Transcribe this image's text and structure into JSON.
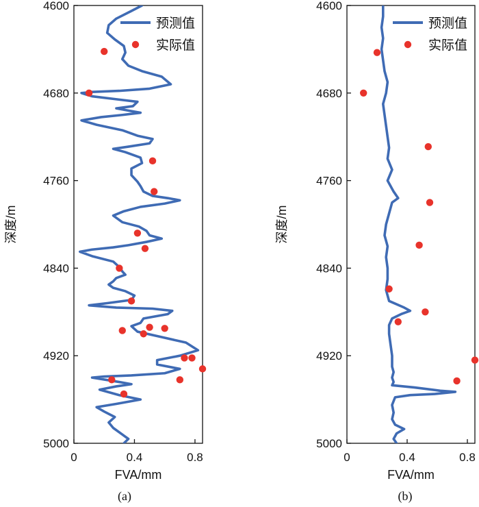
{
  "legend": {
    "predicted_label": "预测值",
    "actual_label": "实际值"
  },
  "colors": {
    "predicted": "#3f6bb4",
    "actual": "#e8332b",
    "axis": "#111111"
  },
  "chart_data": [
    {
      "type": "line",
      "caption": "(a)",
      "xlabel": "FVA/mm",
      "ylabel": "深度/m",
      "xlim": [
        0,
        0.85
      ],
      "ylim": [
        4600,
        5000
      ],
      "y_inverted": true,
      "xticks": [
        0,
        0.4,
        0.8
      ],
      "xtick_labels": [
        "0",
        "0.4",
        "0.8"
      ],
      "yticks": [
        4600,
        4680,
        4760,
        4840,
        4920,
        5000
      ],
      "ytick_labels": [
        "4600",
        "4680",
        "4760",
        "4840",
        "4920",
        "5000"
      ],
      "legend_position": "top-right",
      "series": [
        {
          "name": "预测值",
          "kind": "line",
          "points": [
            [
              0.45,
              4600
            ],
            [
              0.38,
              4605
            ],
            [
              0.28,
              4612
            ],
            [
              0.23,
              4618
            ],
            [
              0.22,
              4625
            ],
            [
              0.27,
              4631
            ],
            [
              0.33,
              4637
            ],
            [
              0.34,
              4643
            ],
            [
              0.32,
              4649
            ],
            [
              0.36,
              4655
            ],
            [
              0.45,
              4660
            ],
            [
              0.58,
              4665
            ],
            [
              0.64,
              4672
            ],
            [
              0.5,
              4676
            ],
            [
              0.3,
              4678
            ],
            [
              0.12,
              4679
            ],
            [
              0.05,
              4680
            ],
            [
              0.12,
              4683
            ],
            [
              0.3,
              4686
            ],
            [
              0.42,
              4688
            ],
            [
              0.39,
              4692
            ],
            [
              0.28,
              4694
            ],
            [
              0.36,
              4696
            ],
            [
              0.44,
              4698
            ],
            [
              0.32,
              4700
            ],
            [
              0.18,
              4702
            ],
            [
              0.05,
              4705
            ],
            [
              0.15,
              4709
            ],
            [
              0.32,
              4714
            ],
            [
              0.42,
              4719
            ],
            [
              0.52,
              4722
            ],
            [
              0.5,
              4726
            ],
            [
              0.36,
              4729
            ],
            [
              0.26,
              4731
            ],
            [
              0.34,
              4734
            ],
            [
              0.44,
              4739
            ],
            [
              0.45,
              4744
            ],
            [
              0.38,
              4749
            ],
            [
              0.38,
              4755
            ],
            [
              0.42,
              4761
            ],
            [
              0.44,
              4765
            ],
            [
              0.46,
              4770
            ],
            [
              0.52,
              4774
            ],
            [
              0.62,
              4776
            ],
            [
              0.7,
              4778
            ],
            [
              0.6,
              4781
            ],
            [
              0.44,
              4784
            ],
            [
              0.33,
              4788
            ],
            [
              0.26,
              4792
            ],
            [
              0.32,
              4798
            ],
            [
              0.43,
              4802
            ],
            [
              0.48,
              4806
            ],
            [
              0.5,
              4810
            ],
            [
              0.58,
              4813
            ],
            [
              0.48,
              4816
            ],
            [
              0.36,
              4819
            ],
            [
              0.26,
              4821
            ],
            [
              0.12,
              4823
            ],
            [
              0.04,
              4825
            ],
            [
              0.12,
              4829
            ],
            [
              0.26,
              4834
            ],
            [
              0.3,
              4839
            ],
            [
              0.32,
              4843
            ],
            [
              0.34,
              4846
            ],
            [
              0.28,
              4849
            ],
            [
              0.26,
              4852
            ],
            [
              0.23,
              4855
            ],
            [
              0.26,
              4858
            ],
            [
              0.34,
              4861
            ],
            [
              0.4,
              4865
            ],
            [
              0.38,
              4869
            ],
            [
              0.22,
              4872
            ],
            [
              0.1,
              4874
            ],
            [
              0.28,
              4876
            ],
            [
              0.52,
              4877
            ],
            [
              0.65,
              4879
            ],
            [
              0.62,
              4882
            ],
            [
              0.46,
              4886
            ],
            [
              0.44,
              4890
            ],
            [
              0.38,
              4893
            ],
            [
              0.42,
              4898
            ],
            [
              0.58,
              4903
            ],
            [
              0.74,
              4908
            ],
            [
              0.82,
              4915
            ],
            [
              0.7,
              4920
            ],
            [
              0.55,
              4924
            ],
            [
              0.55,
              4928
            ],
            [
              0.7,
              4932
            ],
            [
              0.6,
              4936
            ],
            [
              0.38,
              4938
            ],
            [
              0.2,
              4939
            ],
            [
              0.12,
              4940
            ],
            [
              0.3,
              4944
            ],
            [
              0.38,
              4946
            ],
            [
              0.28,
              4948
            ],
            [
              0.17,
              4951
            ],
            [
              0.3,
              4956
            ],
            [
              0.44,
              4960
            ],
            [
              0.28,
              4964
            ],
            [
              0.15,
              4967
            ],
            [
              0.2,
              4971
            ],
            [
              0.27,
              4976
            ],
            [
              0.23,
              4981
            ],
            [
              0.26,
              4986
            ],
            [
              0.32,
              4992
            ],
            [
              0.36,
              4996
            ],
            [
              0.33,
              5000
            ]
          ]
        },
        {
          "name": "实际值",
          "kind": "scatter",
          "points": [
            [
              0.2,
              4642
            ],
            [
              0.1,
              4680
            ],
            [
              0.52,
              4742
            ],
            [
              0.53,
              4770
            ],
            [
              0.47,
              4822
            ],
            [
              0.42,
              4808
            ],
            [
              0.3,
              4840
            ],
            [
              0.38,
              4870
            ],
            [
              0.32,
              4897
            ],
            [
              0.5,
              4894
            ],
            [
              0.73,
              4922
            ],
            [
              0.85,
              4932
            ],
            [
              0.7,
              4942
            ],
            [
              0.25,
              4942
            ],
            [
              0.33,
              4955
            ],
            [
              0.46,
              4900
            ],
            [
              0.6,
              4895
            ],
            [
              0.78,
              4922
            ]
          ]
        }
      ]
    },
    {
      "type": "line",
      "caption": "(b)",
      "xlabel": "FVA/mm",
      "ylabel": "深度/m",
      "xlim": [
        0,
        0.85
      ],
      "ylim": [
        4600,
        5000
      ],
      "y_inverted": true,
      "xticks": [
        0,
        0.4,
        0.8
      ],
      "xtick_labels": [
        "0",
        "0.4",
        "0.8"
      ],
      "yticks": [
        4600,
        4680,
        4760,
        4840,
        4920,
        5000
      ],
      "ytick_labels": [
        "4600",
        "4680",
        "4760",
        "4840",
        "4920",
        "5000"
      ],
      "legend_position": "top-right",
      "series": [
        {
          "name": "预测值",
          "kind": "line",
          "points": [
            [
              0.24,
              4600
            ],
            [
              0.24,
              4610
            ],
            [
              0.23,
              4620
            ],
            [
              0.24,
              4630
            ],
            [
              0.23,
              4640
            ],
            [
              0.24,
              4650
            ],
            [
              0.25,
              4660
            ],
            [
              0.27,
              4670
            ],
            [
              0.26,
              4680
            ],
            [
              0.24,
              4690
            ],
            [
              0.25,
              4700
            ],
            [
              0.26,
              4710
            ],
            [
              0.27,
              4720
            ],
            [
              0.28,
              4730
            ],
            [
              0.27,
              4740
            ],
            [
              0.3,
              4750
            ],
            [
              0.27,
              4760
            ],
            [
              0.29,
              4765
            ],
            [
              0.31,
              4770
            ],
            [
              0.34,
              4776
            ],
            [
              0.3,
              4780
            ],
            [
              0.28,
              4790
            ],
            [
              0.26,
              4800
            ],
            [
              0.25,
              4810
            ],
            [
              0.27,
              4820
            ],
            [
              0.26,
              4830
            ],
            [
              0.27,
              4840
            ],
            [
              0.27,
              4850
            ],
            [
              0.26,
              4860
            ],
            [
              0.28,
              4870
            ],
            [
              0.38,
              4876
            ],
            [
              0.42,
              4879
            ],
            [
              0.36,
              4882
            ],
            [
              0.3,
              4886
            ],
            [
              0.28,
              4892
            ],
            [
              0.28,
              4900
            ],
            [
              0.29,
              4910
            ],
            [
              0.3,
              4920
            ],
            [
              0.3,
              4930
            ],
            [
              0.31,
              4935
            ],
            [
              0.3,
              4940
            ],
            [
              0.31,
              4944
            ],
            [
              0.3,
              4947
            ],
            [
              0.45,
              4949
            ],
            [
              0.62,
              4952
            ],
            [
              0.72,
              4953
            ],
            [
              0.58,
              4955
            ],
            [
              0.42,
              4956
            ],
            [
              0.32,
              4958
            ],
            [
              0.3,
              4965
            ],
            [
              0.31,
              4972
            ],
            [
              0.3,
              4978
            ],
            [
              0.32,
              4983
            ],
            [
              0.38,
              4987
            ],
            [
              0.33,
              4991
            ],
            [
              0.31,
              4996
            ],
            [
              0.33,
              5000
            ]
          ]
        },
        {
          "name": "实际值",
          "kind": "scatter",
          "points": [
            [
              0.2,
              4643
            ],
            [
              0.11,
              4680
            ],
            [
              0.54,
              4729
            ],
            [
              0.55,
              4780
            ],
            [
              0.48,
              4819
            ],
            [
              0.28,
              4859
            ],
            [
              0.52,
              4880
            ],
            [
              0.34,
              4889
            ],
            [
              0.85,
              4924
            ],
            [
              0.73,
              4943
            ]
          ]
        }
      ]
    }
  ]
}
